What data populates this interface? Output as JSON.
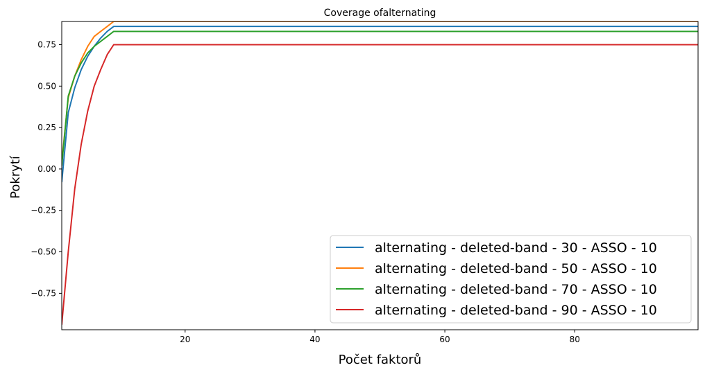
{
  "chart_data": {
    "type": "line",
    "title": "Coverage ofalternating",
    "xlabel": "Počet faktorů",
    "ylabel": "Pokrytí",
    "xlim": [
      1,
      99
    ],
    "ylim": [
      -0.97,
      0.89
    ],
    "xticks": [
      20,
      40,
      60,
      80
    ],
    "yticks": [
      -0.75,
      -0.5,
      -0.25,
      0.0,
      0.25,
      0.5,
      0.75
    ],
    "ytick_labels": [
      "−0.75",
      "−0.50",
      "−0.25",
      "0.00",
      "0.25",
      "0.50",
      "0.75"
    ],
    "grid": false,
    "legend": "lower-right",
    "series": [
      {
        "name": "alternating - deleted-band - 30 - ASSO - 10",
        "color": "#1f77b4",
        "x": [
          1,
          2,
          3,
          4,
          5,
          6,
          7,
          8,
          9,
          99
        ],
        "y": [
          -0.08,
          0.34,
          0.49,
          0.6,
          0.68,
          0.74,
          0.79,
          0.83,
          0.86,
          0.86
        ]
      },
      {
        "name": "alternating - deleted-band - 50 - ASSO - 10",
        "color": "#ff7f0e",
        "x": [
          1,
          2,
          3,
          4,
          5,
          6,
          7,
          8,
          9,
          99
        ],
        "y": [
          0.04,
          0.43,
          0.56,
          0.66,
          0.74,
          0.8,
          0.83,
          0.86,
          0.89,
          0.89
        ]
      },
      {
        "name": "alternating - deleted-band - 70 - ASSO - 10",
        "color": "#2ca02c",
        "x": [
          1,
          2,
          3,
          4,
          5,
          6,
          7,
          8,
          9,
          99
        ],
        "y": [
          0.02,
          0.44,
          0.56,
          0.64,
          0.7,
          0.74,
          0.77,
          0.8,
          0.83,
          0.83
        ]
      },
      {
        "name": "alternating - deleted-band - 90 - ASSO - 10",
        "color": "#d62728",
        "x": [
          1,
          2,
          3,
          4,
          5,
          6,
          7,
          8,
          9,
          99
        ],
        "y": [
          -0.94,
          -0.5,
          -0.12,
          0.15,
          0.35,
          0.5,
          0.6,
          0.69,
          0.75,
          0.75
        ]
      }
    ]
  }
}
